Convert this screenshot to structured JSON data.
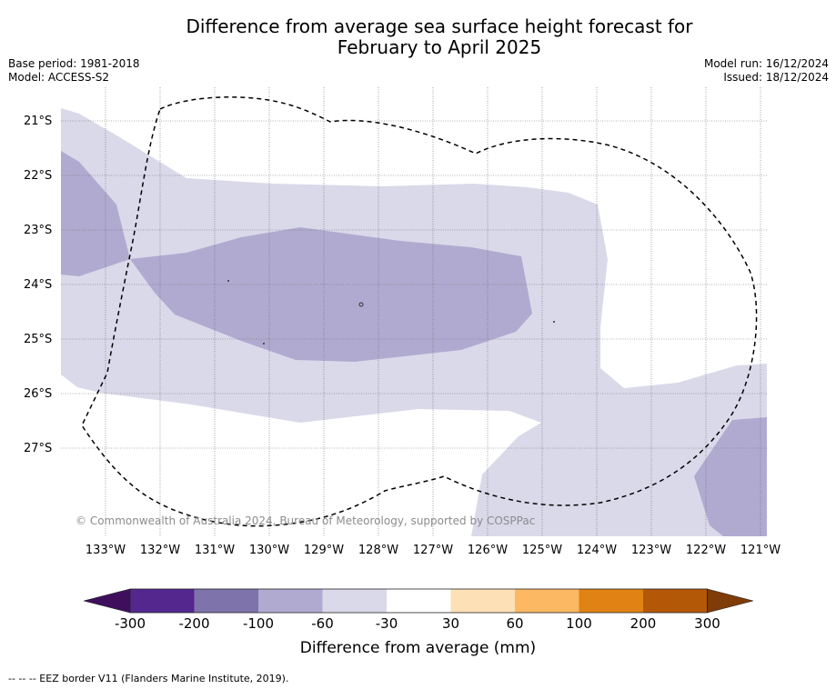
{
  "title_line1": "Difference from average sea surface height forecast for",
  "title_line2": "February to April 2025",
  "base_period": "Base period: 1981-2018",
  "model": "Model: ACCESS-S2",
  "model_run": "Model run: 16/12/2024",
  "issued": "Issued: 18/12/2024",
  "copyright": "© Commonwealth of Australia 2024, Bureau of Meteorology, supported by COSPPac",
  "latitude_labels": [
    "21°S",
    "22°S",
    "23°S",
    "24°S",
    "25°S",
    "26°S",
    "27°S"
  ],
  "longitude_labels": [
    "133°W",
    "132°W",
    "131°W",
    "130°W",
    "129°W",
    "128°W",
    "127°W",
    "126°W",
    "125°W",
    "124°W",
    "123°W",
    "122°W",
    "121°W"
  ],
  "colorbar": {
    "title": "Difference from average (mm)",
    "tick_labels": [
      "-300",
      "-200",
      "-100",
      "-60",
      "-30",
      "30",
      "60",
      "100",
      "200",
      "300"
    ],
    "colors": [
      "#3f0f5e",
      "#54278f",
      "#7f73ab",
      "#b1aad0",
      "#d9d9ea",
      "#ffffff",
      "#fee0b6",
      "#fdb863",
      "#e08214",
      "#b35806",
      "#7f3b08"
    ]
  },
  "legend_footnote": "--  --  -- EEZ border V11 (Flanders Marine Institute, 2019).",
  "map_colors": {
    "level_minus30_to_minus60": "#d9d9ea",
    "level_minus60_to_minus100": "#b1aad0"
  }
}
